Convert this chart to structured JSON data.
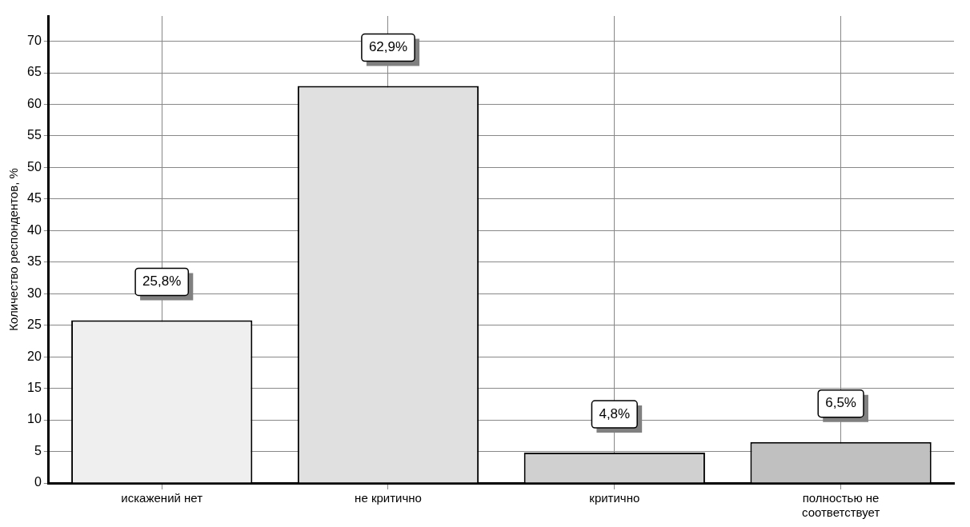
{
  "chart_data": {
    "type": "bar",
    "ylabel": "Количество респондентов, %",
    "categories": [
      "искажений нет",
      "не критично",
      "критично",
      "полностью не соответствует"
    ],
    "values": [
      25.8,
      62.9,
      4.8,
      6.5
    ],
    "colors": [
      "#efefef",
      "#e0e0e0",
      "#d0d0d0",
      "#c0c0c0"
    ],
    "value_labels": [
      "25,8%",
      "62,9%",
      "4,8%",
      "6,5%"
    ],
    "ylim": [
      0,
      74
    ],
    "yticks": [
      0,
      5,
      10,
      15,
      20,
      25,
      30,
      35,
      40,
      45,
      50,
      55,
      60,
      65,
      70
    ],
    "grid": true,
    "legend": false
  }
}
